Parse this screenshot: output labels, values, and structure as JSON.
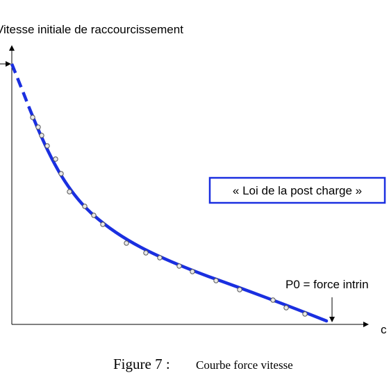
{
  "y_axis_label": "Vitesse initiale de raccourcissement",
  "x_axis_label": "c",
  "annotation_box": "« Loi de la post charge »",
  "p0_label": "P0 = force intrin",
  "caption": {
    "label": "Figure 7 :",
    "text": "Courbe force vitesse"
  }
}
